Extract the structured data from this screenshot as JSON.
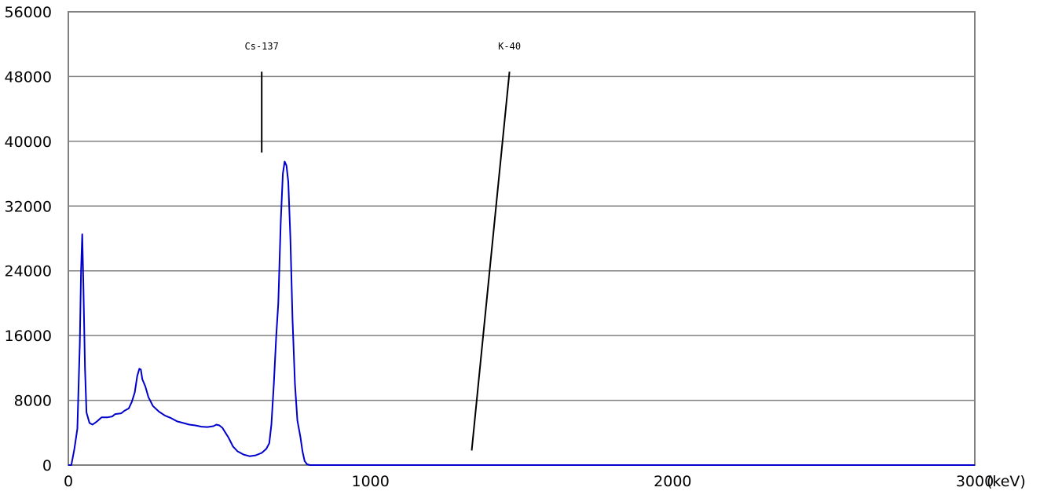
{
  "chart_data": {
    "type": "line",
    "title": "",
    "xlabel": "",
    "ylabel": "",
    "x_unit": "(keV)",
    "xlim": [
      0,
      3000
    ],
    "ylim": [
      0,
      56000
    ],
    "x_ticks": [
      0,
      1000,
      2000,
      3000
    ],
    "y_ticks": [
      0,
      8000,
      16000,
      24000,
      32000,
      40000,
      48000,
      56000
    ],
    "grid": "horizontal",
    "legend": "none",
    "series": [
      {
        "color": "#0000cc",
        "points": [
          [
            0,
            0
          ],
          [
            10,
            0
          ],
          [
            20,
            2000
          ],
          [
            30,
            4500
          ],
          [
            38,
            15000
          ],
          [
            42,
            24000
          ],
          [
            46,
            28500
          ],
          [
            50,
            22000
          ],
          [
            55,
            12000
          ],
          [
            60,
            6500
          ],
          [
            70,
            5200
          ],
          [
            80,
            5000
          ],
          [
            95,
            5400
          ],
          [
            110,
            5900
          ],
          [
            130,
            5900
          ],
          [
            145,
            6000
          ],
          [
            155,
            6300
          ],
          [
            175,
            6400
          ],
          [
            185,
            6700
          ],
          [
            200,
            7000
          ],
          [
            210,
            7800
          ],
          [
            220,
            9000
          ],
          [
            228,
            11000
          ],
          [
            235,
            11900
          ],
          [
            240,
            11800
          ],
          [
            245,
            10600
          ],
          [
            255,
            9700
          ],
          [
            265,
            8400
          ],
          [
            280,
            7300
          ],
          [
            300,
            6600
          ],
          [
            320,
            6100
          ],
          [
            340,
            5800
          ],
          [
            360,
            5400
          ],
          [
            380,
            5200
          ],
          [
            400,
            5000
          ],
          [
            420,
            4900
          ],
          [
            440,
            4750
          ],
          [
            460,
            4700
          ],
          [
            480,
            4800
          ],
          [
            490,
            5000
          ],
          [
            500,
            4900
          ],
          [
            510,
            4600
          ],
          [
            520,
            4000
          ],
          [
            530,
            3400
          ],
          [
            545,
            2300
          ],
          [
            560,
            1700
          ],
          [
            580,
            1300
          ],
          [
            600,
            1100
          ],
          [
            620,
            1200
          ],
          [
            640,
            1500
          ],
          [
            655,
            2000
          ],
          [
            665,
            2700
          ],
          [
            672,
            5000
          ],
          [
            680,
            10000
          ],
          [
            688,
            16000
          ],
          [
            695,
            20000
          ],
          [
            703,
            30000
          ],
          [
            710,
            36000
          ],
          [
            716,
            37500
          ],
          [
            722,
            37000
          ],
          [
            728,
            35000
          ],
          [
            735,
            28000
          ],
          [
            742,
            18000
          ],
          [
            750,
            10000
          ],
          [
            758,
            5500
          ],
          [
            768,
            3500
          ],
          [
            775,
            1700
          ],
          [
            782,
            500
          ],
          [
            790,
            100
          ],
          [
            800,
            0
          ],
          [
            1200,
            0
          ],
          [
            2000,
            0
          ],
          [
            3000,
            0
          ]
        ]
      }
    ],
    "annotations": [
      {
        "label": "Cs-137",
        "line_from": [
          640,
          48600
        ],
        "line_to": [
          640,
          38600
        ]
      },
      {
        "label": "K-40",
        "line_from": [
          1460,
          48600
        ],
        "line_to": [
          1335,
          1800
        ]
      }
    ]
  }
}
